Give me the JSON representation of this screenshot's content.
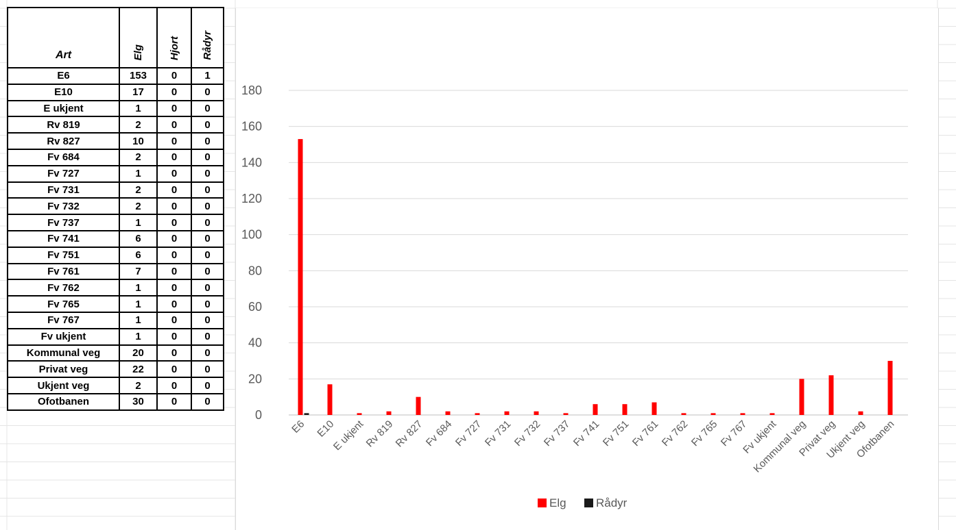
{
  "table": {
    "header": {
      "art": "Art",
      "elg": "Elg",
      "hjort": "Hjort",
      "radyr": "Rådyr"
    },
    "rows": [
      {
        "name": "E6",
        "elg": 153,
        "hjort": 0,
        "radyr": 1
      },
      {
        "name": "E10",
        "elg": 17,
        "hjort": 0,
        "radyr": 0
      },
      {
        "name": "E ukjent",
        "elg": 1,
        "hjort": 0,
        "radyr": 0
      },
      {
        "name": "Rv 819",
        "elg": 2,
        "hjort": 0,
        "radyr": 0
      },
      {
        "name": "Rv 827",
        "elg": 10,
        "hjort": 0,
        "radyr": 0
      },
      {
        "name": "Fv 684",
        "elg": 2,
        "hjort": 0,
        "radyr": 0
      },
      {
        "name": "Fv 727",
        "elg": 1,
        "hjort": 0,
        "radyr": 0
      },
      {
        "name": "Fv 731",
        "elg": 2,
        "hjort": 0,
        "radyr": 0
      },
      {
        "name": "Fv 732",
        "elg": 2,
        "hjort": 0,
        "radyr": 0
      },
      {
        "name": "Fv 737",
        "elg": 1,
        "hjort": 0,
        "radyr": 0
      },
      {
        "name": "Fv 741",
        "elg": 6,
        "hjort": 0,
        "radyr": 0
      },
      {
        "name": "Fv 751",
        "elg": 6,
        "hjort": 0,
        "radyr": 0
      },
      {
        "name": "Fv 761",
        "elg": 7,
        "hjort": 0,
        "radyr": 0
      },
      {
        "name": "Fv 762",
        "elg": 1,
        "hjort": 0,
        "radyr": 0
      },
      {
        "name": "Fv 765",
        "elg": 1,
        "hjort": 0,
        "radyr": 0
      },
      {
        "name": "Fv 767",
        "elg": 1,
        "hjort": 0,
        "radyr": 0
      },
      {
        "name": "Fv ukjent",
        "elg": 1,
        "hjort": 0,
        "radyr": 0
      },
      {
        "name": "Kommunal veg",
        "elg": 20,
        "hjort": 0,
        "radyr": 0
      },
      {
        "name": "Privat veg",
        "elg": 22,
        "hjort": 0,
        "radyr": 0
      },
      {
        "name": "Ukjent veg",
        "elg": 2,
        "hjort": 0,
        "radyr": 0
      },
      {
        "name": "Ofotbanen",
        "elg": 30,
        "hjort": 0,
        "radyr": 0
      }
    ]
  },
  "chart_data": {
    "type": "bar",
    "categories": [
      "E6",
      "E10",
      "E ukjent",
      "Rv 819",
      "Rv 827",
      "Fv 684",
      "Fv 727",
      "Fv 731",
      "Fv 732",
      "Fv 737",
      "Fv 741",
      "Fv 751",
      "Fv 761",
      "Fv 762",
      "Fv 765",
      "Fv 767",
      "Fv ukjent",
      "Kommunal veg",
      "Privat veg",
      "Ukjent veg",
      "Ofotbanen"
    ],
    "series": [
      {
        "name": "Elg",
        "color": "#ff0000",
        "values": [
          153,
          17,
          1,
          2,
          10,
          2,
          1,
          2,
          2,
          1,
          6,
          6,
          7,
          1,
          1,
          1,
          1,
          20,
          22,
          2,
          30
        ]
      },
      {
        "name": "Rådyr",
        "color": "#1a1a1a",
        "values": [
          1,
          0,
          0,
          0,
          0,
          0,
          0,
          0,
          0,
          0,
          0,
          0,
          0,
          0,
          0,
          0,
          0,
          0,
          0,
          0,
          0
        ]
      }
    ],
    "ylim": [
      0,
      180
    ],
    "yticks": [
      0,
      20,
      40,
      60,
      80,
      100,
      120,
      140,
      160,
      180
    ],
    "grid": true,
    "legend_position": "bottom"
  }
}
